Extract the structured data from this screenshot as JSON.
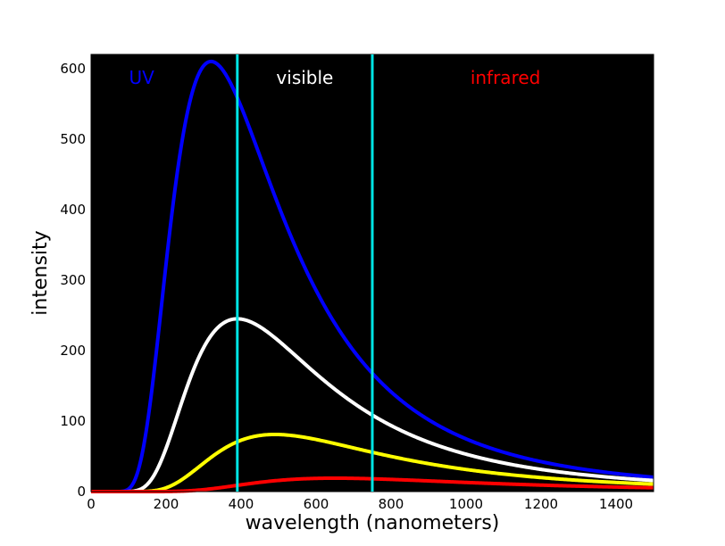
{
  "chart_data": {
    "type": "line",
    "title": "",
    "xlabel": "wavelength (nanometers)",
    "ylabel": "intensity",
    "xlim": [
      0,
      1500
    ],
    "ylim": [
      0,
      620
    ],
    "xticks": [
      0,
      200,
      400,
      600,
      800,
      1000,
      1200,
      1400
    ],
    "yticks": [
      0,
      100,
      200,
      300,
      400,
      500,
      600
    ],
    "background": "#000000",
    "grid": false,
    "vertical_lines": [
      {
        "x": 390,
        "color": "#00e5e5"
      },
      {
        "x": 750,
        "color": "#00e5e5"
      }
    ],
    "region_labels": [
      {
        "text": "UV",
        "x": 135,
        "y": 587,
        "color": "#0000ff"
      },
      {
        "text": "visible",
        "x": 570,
        "y": 587,
        "color": "#ffffff"
      },
      {
        "text": "infrared",
        "x": 1105,
        "y": 587,
        "color": "#ff0000"
      }
    ],
    "series": [
      {
        "name": "blue",
        "color": "#0000ff",
        "peak_x": 320,
        "peak_y": 610
      },
      {
        "name": "white",
        "color": "#ffffff",
        "peak_x": 390,
        "peak_y": 245
      },
      {
        "name": "yellow",
        "color": "#ffff00",
        "peak_x": 490,
        "peak_y": 81
      },
      {
        "name": "red",
        "color": "#ff0000",
        "peak_x": 650,
        "peak_y": 19
      }
    ]
  }
}
